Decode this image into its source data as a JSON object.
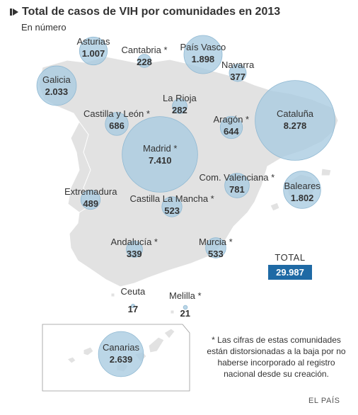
{
  "header": {
    "title": "Total de casos de VIH por comunidades en 2013",
    "subtitle": "En número"
  },
  "colors": {
    "land": "#e2e2e2",
    "bubble_fill": "#a8cbe0",
    "bubble_stroke": "#8fb8d2",
    "total_bg": "#1f6aa5"
  },
  "regions": [
    {
      "id": "asturias",
      "name": "Asturias",
      "value": "1.007",
      "cases": 1007
    },
    {
      "id": "cantabria",
      "name": "Cantabria *",
      "value": "228",
      "cases": 228
    },
    {
      "id": "pais-vasco",
      "name": "País Vasco",
      "value": "1.898",
      "cases": 1898
    },
    {
      "id": "navarra",
      "name": "Navarra",
      "value": "377",
      "cases": 377
    },
    {
      "id": "galicia",
      "name": "Galicia",
      "value": "2.033",
      "cases": 2033
    },
    {
      "id": "la-rioja",
      "name": "La Rioja",
      "value": "282",
      "cases": 282
    },
    {
      "id": "castilla-leon",
      "name": "Castilla y León *",
      "value": "686",
      "cases": 686
    },
    {
      "id": "aragon",
      "name": "Aragón *",
      "value": "644",
      "cases": 644
    },
    {
      "id": "cataluna",
      "name": "Cataluña",
      "value": "8.278",
      "cases": 8278
    },
    {
      "id": "madrid",
      "name": "Madrid *",
      "value": "7.410",
      "cases": 7410
    },
    {
      "id": "com-valenciana",
      "name": "Com. Valenciana *",
      "value": "781",
      "cases": 781
    },
    {
      "id": "baleares",
      "name": "Baleares",
      "value": "1.802",
      "cases": 1802
    },
    {
      "id": "extremadura",
      "name": "Extremadura",
      "value": "489",
      "cases": 489
    },
    {
      "id": "castilla-la-mancha",
      "name": "Castilla La Mancha *",
      "value": "523",
      "cases": 523
    },
    {
      "id": "andalucia",
      "name": "Andalucía *",
      "value": "339",
      "cases": 339
    },
    {
      "id": "murcia",
      "name": "Murcia *",
      "value": "533",
      "cases": 533
    },
    {
      "id": "ceuta",
      "name": "Ceuta",
      "value": "17",
      "cases": 17
    },
    {
      "id": "melilla",
      "name": "Melilla *",
      "value": "21",
      "cases": 21
    },
    {
      "id": "canarias",
      "name": "Canarias",
      "value": "2.639",
      "cases": 2639
    }
  ],
  "total": {
    "label": "TOTAL",
    "value": "29.987"
  },
  "note": "* Las cifras de estas comunidades están distorsionadas a la baja por no haberse incorporado al registro nacional desde su creación.",
  "source": "EL PAÍS"
}
